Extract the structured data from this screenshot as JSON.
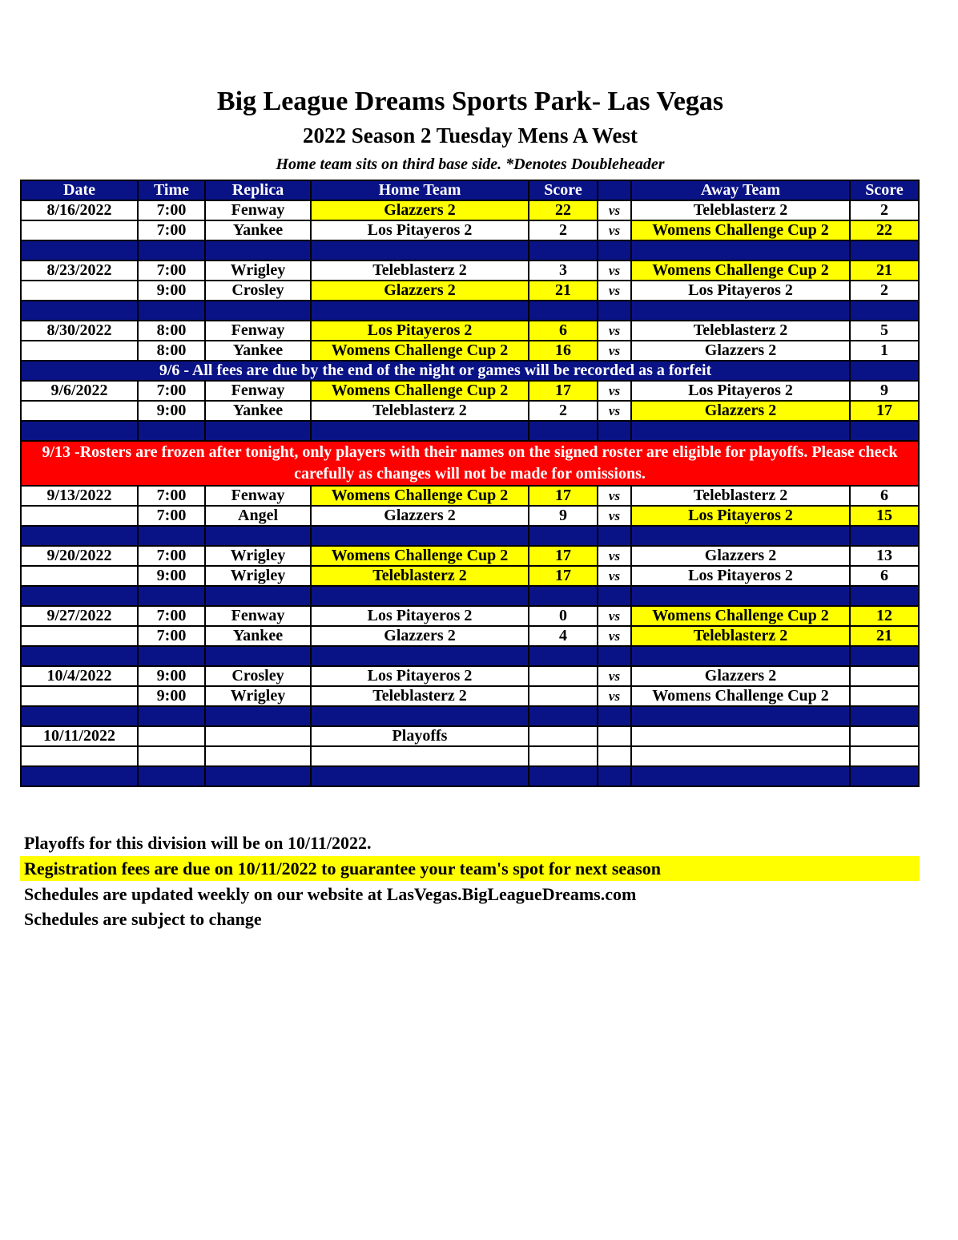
{
  "title": "Big League Dreams Sports Park- Las Vegas",
  "subtitle": "2022 Season 2 Tuesday Mens A West",
  "note": "Home team sits on third base side.  *Denotes Doubleheader",
  "headers": [
    "Date",
    "Time",
    "Replica",
    "Home Team",
    "Score",
    "",
    "Away Team",
    "Score"
  ],
  "vs": "vs",
  "colors": {
    "header": "#0a1385",
    "winner": "#ffff00",
    "alert": "#ff0000"
  },
  "rows": [
    {
      "type": "game",
      "date": "8/16/2022",
      "time": "7:00",
      "field": "Fenway",
      "home": "Glazzers 2",
      "hs": "22",
      "away": "Teleblasterz 2",
      "as": "2",
      "win": "home"
    },
    {
      "type": "game",
      "date": "",
      "time": "7:00",
      "field": "Yankee",
      "home": "Los Pitayeros 2",
      "hs": "2",
      "away": "Womens Challenge Cup 2",
      "as": "22",
      "win": "away"
    },
    {
      "type": "blue"
    },
    {
      "type": "game",
      "date": "8/23/2022",
      "time": "7:00",
      "field": "Wrigley",
      "home": "Teleblasterz 2",
      "hs": "3",
      "away": "Womens Challenge Cup 2",
      "as": "21",
      "win": "away"
    },
    {
      "type": "game",
      "date": "",
      "time": "9:00",
      "field": "Crosley",
      "home": "Glazzers 2",
      "hs": "21",
      "away": "Los Pitayeros 2",
      "as": "2",
      "win": "home"
    },
    {
      "type": "blue"
    },
    {
      "type": "game",
      "date": "8/30/2022",
      "time": "8:00",
      "field": "Fenway",
      "home": "Los Pitayeros 2",
      "hs": "6",
      "away": "Teleblasterz 2",
      "as": "5",
      "win": "home"
    },
    {
      "type": "game",
      "date": "",
      "time": "8:00",
      "field": "Yankee",
      "home": "Womens Challenge Cup 2",
      "hs": "16",
      "away": "Glazzers 2",
      "as": "1",
      "win": "home"
    },
    {
      "type": "notice",
      "text": "9/6 - All fees are due by the end of the night or games will be recorded as a forfeit"
    },
    {
      "type": "game",
      "date": "9/6/2022",
      "time": "7:00",
      "field": "Fenway",
      "home": "Womens Challenge Cup 2",
      "hs": "17",
      "away": "Los Pitayeros 2",
      "as": "9",
      "win": "home"
    },
    {
      "type": "game",
      "date": "",
      "time": "9:00",
      "field": "Yankee",
      "home": "Teleblasterz 2",
      "hs": "2",
      "away": "Glazzers 2",
      "as": "17",
      "win": "away"
    },
    {
      "type": "blue"
    },
    {
      "type": "red",
      "text": "9/13 -Rosters are frozen after tonight, only players with their names on the signed roster are eligible for playoffs. Please check carefully as changes will not be made for omissions."
    },
    {
      "type": "game",
      "date": "9/13/2022",
      "time": "7:00",
      "field": "Fenway",
      "home": "Womens Challenge Cup 2",
      "hs": "17",
      "away": "Teleblasterz 2",
      "as": "6",
      "win": "home"
    },
    {
      "type": "game",
      "date": "",
      "time": "7:00",
      "field": "Angel",
      "home": "Glazzers 2",
      "hs": "9",
      "away": "Los Pitayeros 2",
      "as": "15",
      "win": "away"
    },
    {
      "type": "blue"
    },
    {
      "type": "game",
      "date": "9/20/2022",
      "time": "7:00",
      "field": "Wrigley",
      "home": "Womens Challenge Cup 2",
      "hs": "17",
      "away": "Glazzers 2",
      "as": "13",
      "win": "home"
    },
    {
      "type": "game",
      "date": "",
      "time": "9:00",
      "field": "Wrigley",
      "home": "Teleblasterz 2",
      "hs": "17",
      "away": "Los Pitayeros 2",
      "as": "6",
      "win": "home"
    },
    {
      "type": "blue"
    },
    {
      "type": "game",
      "date": "9/27/2022",
      "time": "7:00",
      "field": "Fenway",
      "home": "Los Pitayeros 2",
      "hs": "0",
      "away": "Womens Challenge Cup 2",
      "as": "12",
      "win": "away"
    },
    {
      "type": "game",
      "date": "",
      "time": "7:00",
      "field": "Yankee",
      "home": "Glazzers 2",
      "hs": "4",
      "away": "Teleblasterz 2",
      "as": "21",
      "win": "away"
    },
    {
      "type": "blue"
    },
    {
      "type": "game",
      "date": "10/4/2022",
      "time": "9:00",
      "field": "Crosley",
      "home": "Los Pitayeros 2",
      "hs": "",
      "away": "Glazzers 2",
      "as": "",
      "win": ""
    },
    {
      "type": "game",
      "date": "",
      "time": "9:00",
      "field": "Wrigley",
      "home": "Teleblasterz 2",
      "hs": "",
      "away": "Womens Challenge Cup 2",
      "as": "",
      "win": ""
    },
    {
      "type": "blue"
    },
    {
      "type": "game",
      "date": "10/11/2022",
      "time": "",
      "field": "",
      "home": "Playoffs",
      "hs": "",
      "away": "",
      "as": "",
      "win": "",
      "novs": true
    },
    {
      "type": "game",
      "date": "",
      "time": "",
      "field": "",
      "home": "",
      "hs": "",
      "away": "",
      "as": "",
      "win": "",
      "novs": true
    },
    {
      "type": "blue"
    }
  ],
  "footer": [
    "Playoffs for this division will be on 10/11/2022.",
    "Registration fees are due on 10/11/2022 to guarantee your team's spot for next season",
    "Schedules are updated weekly on our website at LasVegas.BigLeagueDreams.com",
    "Schedules are subject to change"
  ]
}
